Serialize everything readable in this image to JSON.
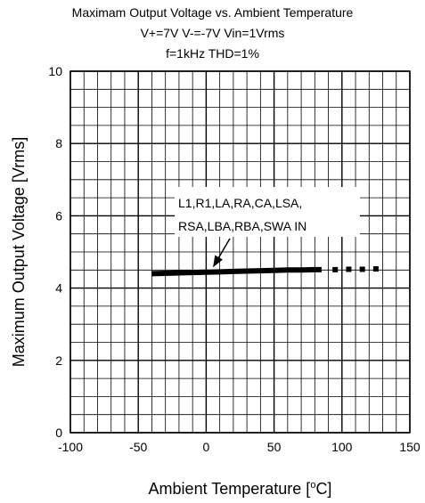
{
  "chart_data": {
    "type": "line",
    "title": "Maximam Output Voltage vs. Ambient Temperature",
    "subtitle_lines": [
      "V+=7V V-=-7V Vin=1Vrms",
      "f=1kHz THD=1%"
    ],
    "xlabel": "Ambient Temperature [",
    "xlabel_unit_sup": "o",
    "xlabel_unit_tail": "C]",
    "ylabel": "Maximum Output Voltage [Vrms]",
    "xlim": [
      -100,
      150
    ],
    "ylim": [
      0,
      10
    ],
    "x_ticks": [
      -100,
      -50,
      0,
      50,
      100,
      150
    ],
    "y_ticks": [
      0,
      2,
      4,
      6,
      8,
      10
    ],
    "x_minor_step": 10,
    "y_minor_step": 0.5,
    "grid": true,
    "series": [
      {
        "x": [
          -40,
          -30,
          -20,
          -10,
          0,
          10,
          20,
          30,
          40,
          50,
          60,
          70,
          80,
          85,
          95,
          105,
          115,
          125
        ],
        "y": [
          4.4,
          4.41,
          4.42,
          4.43,
          4.44,
          4.45,
          4.46,
          4.47,
          4.48,
          4.49,
          4.5,
          4.5,
          4.51,
          4.51,
          4.51,
          4.52,
          4.52,
          4.53
        ],
        "solid_until_x": 88
      }
    ],
    "annotation": {
      "lines": [
        "L1,R1,LA,RA,CA,LSA,",
        "RSA,LBA,RBA,SWA  IN"
      ],
      "arrow_to": [
        5,
        4.45
      ]
    }
  }
}
